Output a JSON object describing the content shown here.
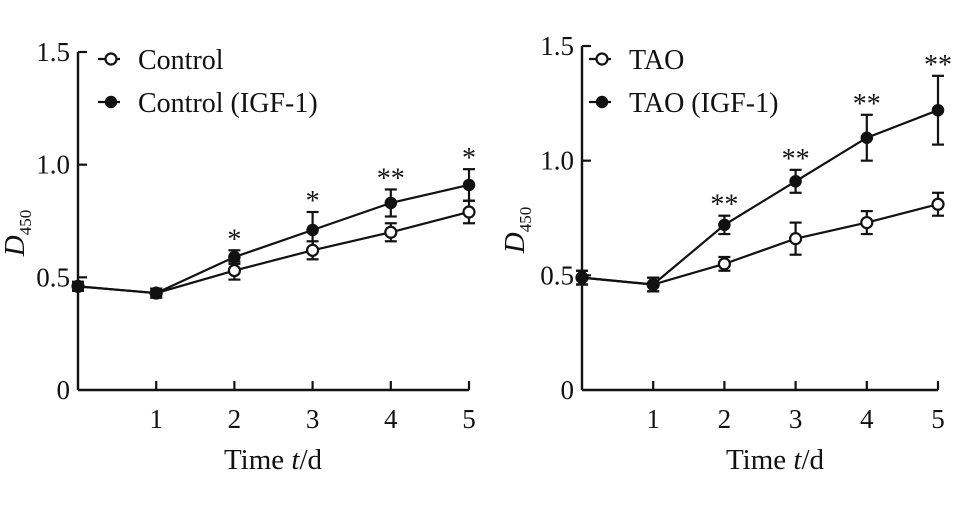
{
  "chart_data": [
    {
      "type": "line",
      "title": "",
      "xlabel_main": "Time ",
      "xlabel_var": "t",
      "xlabel_unit": "/d",
      "ylabel_main": "D",
      "ylabel_sub": "450",
      "x": [
        0,
        1,
        2,
        3,
        4,
        5
      ],
      "xticks": [
        "1",
        "2",
        "3",
        "4",
        "5"
      ],
      "xtick_values": [
        1,
        2,
        3,
        4,
        5
      ],
      "ylim": [
        0,
        1.5
      ],
      "xlim": [
        0,
        5
      ],
      "yticks": [
        "0",
        "0.5",
        "1.0",
        "1.5"
      ],
      "ytick_values": [
        0,
        0.5,
        1.0,
        1.5
      ],
      "legend": "top-left",
      "series": [
        {
          "name": "Control",
          "marker": "open",
          "values": [
            0.46,
            0.43,
            0.53,
            0.62,
            0.7,
            0.79
          ],
          "errors": [
            0.02,
            0.02,
            0.04,
            0.04,
            0.04,
            0.05
          ]
        },
        {
          "name": "Control (IGF-1)",
          "marker": "filled",
          "values": [
            0.46,
            0.43,
            0.59,
            0.71,
            0.83,
            0.91
          ],
          "errors": [
            0.02,
            0.02,
            0.03,
            0.08,
            0.06,
            0.07
          ]
        }
      ],
      "significance": [
        "",
        "",
        "*",
        "*",
        "**",
        "*"
      ]
    },
    {
      "type": "line",
      "title": "",
      "xlabel_main": "Time ",
      "xlabel_var": "t",
      "xlabel_unit": "/d",
      "ylabel_main": "D",
      "ylabel_sub": "450",
      "x": [
        0,
        1,
        2,
        3,
        4,
        5
      ],
      "xticks": [
        "1",
        "2",
        "3",
        "4",
        "5"
      ],
      "xtick_values": [
        1,
        2,
        3,
        4,
        5
      ],
      "ylim": [
        0,
        1.5
      ],
      "xlim": [
        0,
        5
      ],
      "yticks": [
        "0",
        "0.5",
        "1.0",
        "1.5"
      ],
      "ytick_values": [
        0,
        0.5,
        1.0,
        1.5
      ],
      "legend": "top-left",
      "series": [
        {
          "name": "TAO",
          "marker": "open",
          "values": [
            0.49,
            0.46,
            0.55,
            0.66,
            0.73,
            0.81
          ],
          "errors": [
            0.03,
            0.03,
            0.03,
            0.07,
            0.05,
            0.05
          ]
        },
        {
          "name": "TAO (IGF-1)",
          "marker": "filled",
          "values": [
            0.49,
            0.46,
            0.72,
            0.91,
            1.1,
            1.22
          ],
          "errors": [
            0.03,
            0.03,
            0.04,
            0.05,
            0.1,
            0.15
          ]
        }
      ],
      "significance": [
        "",
        "",
        "**",
        "**",
        "**",
        "**"
      ]
    }
  ]
}
